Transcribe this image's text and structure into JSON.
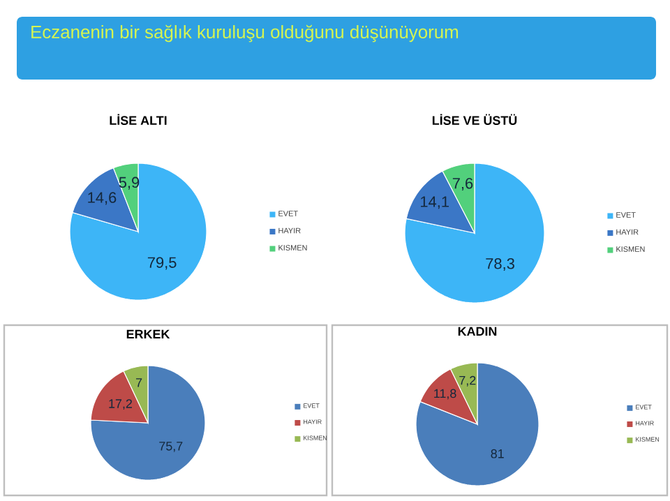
{
  "chart_data": [
    {
      "type": "other",
      "title": "Eczanenin bir sağlık kuruluşu olduğunu düşünüyorum"
    },
    {
      "type": "pie",
      "title": "LİSE ALTI",
      "categories": [
        "EVET",
        "HAYIR",
        "KISMEN"
      ],
      "values": [
        79.5,
        14.6,
        5.9
      ],
      "value_labels": [
        "79,5",
        "14,6",
        "5,9"
      ],
      "colors": [
        "#3db5f7",
        "#3b77c6",
        "#52d07c"
      ],
      "legend": "right"
    },
    {
      "type": "pie",
      "title": "LİSE VE ÜSTÜ",
      "categories": [
        "EVET",
        "HAYIR",
        "KISMEN"
      ],
      "values": [
        78.3,
        14.1,
        7.6
      ],
      "value_labels": [
        "78,3",
        "14,1",
        "7,6"
      ],
      "colors": [
        "#3db5f7",
        "#3b77c6",
        "#52d07c"
      ],
      "legend": "right"
    },
    {
      "type": "pie",
      "title": "ERKEK",
      "categories": [
        "EVET",
        "HAYIR",
        "KISMEN"
      ],
      "values": [
        75.7,
        17.2,
        7
      ],
      "value_labels": [
        "75,7",
        "17,2",
        "7"
      ],
      "colors": [
        "#4a7ebb",
        "#be4b48",
        "#98b954"
      ],
      "legend": "right"
    },
    {
      "type": "pie",
      "title": "KADIN",
      "categories": [
        "EVET",
        "HAYIR",
        "KISMEN"
      ],
      "values": [
        81,
        11.8,
        7.2
      ],
      "value_labels": [
        "81",
        "11,8",
        "7,2"
      ],
      "colors": [
        "#4a7ebb",
        "#be4b48",
        "#98b954"
      ],
      "legend": "right"
    }
  ]
}
